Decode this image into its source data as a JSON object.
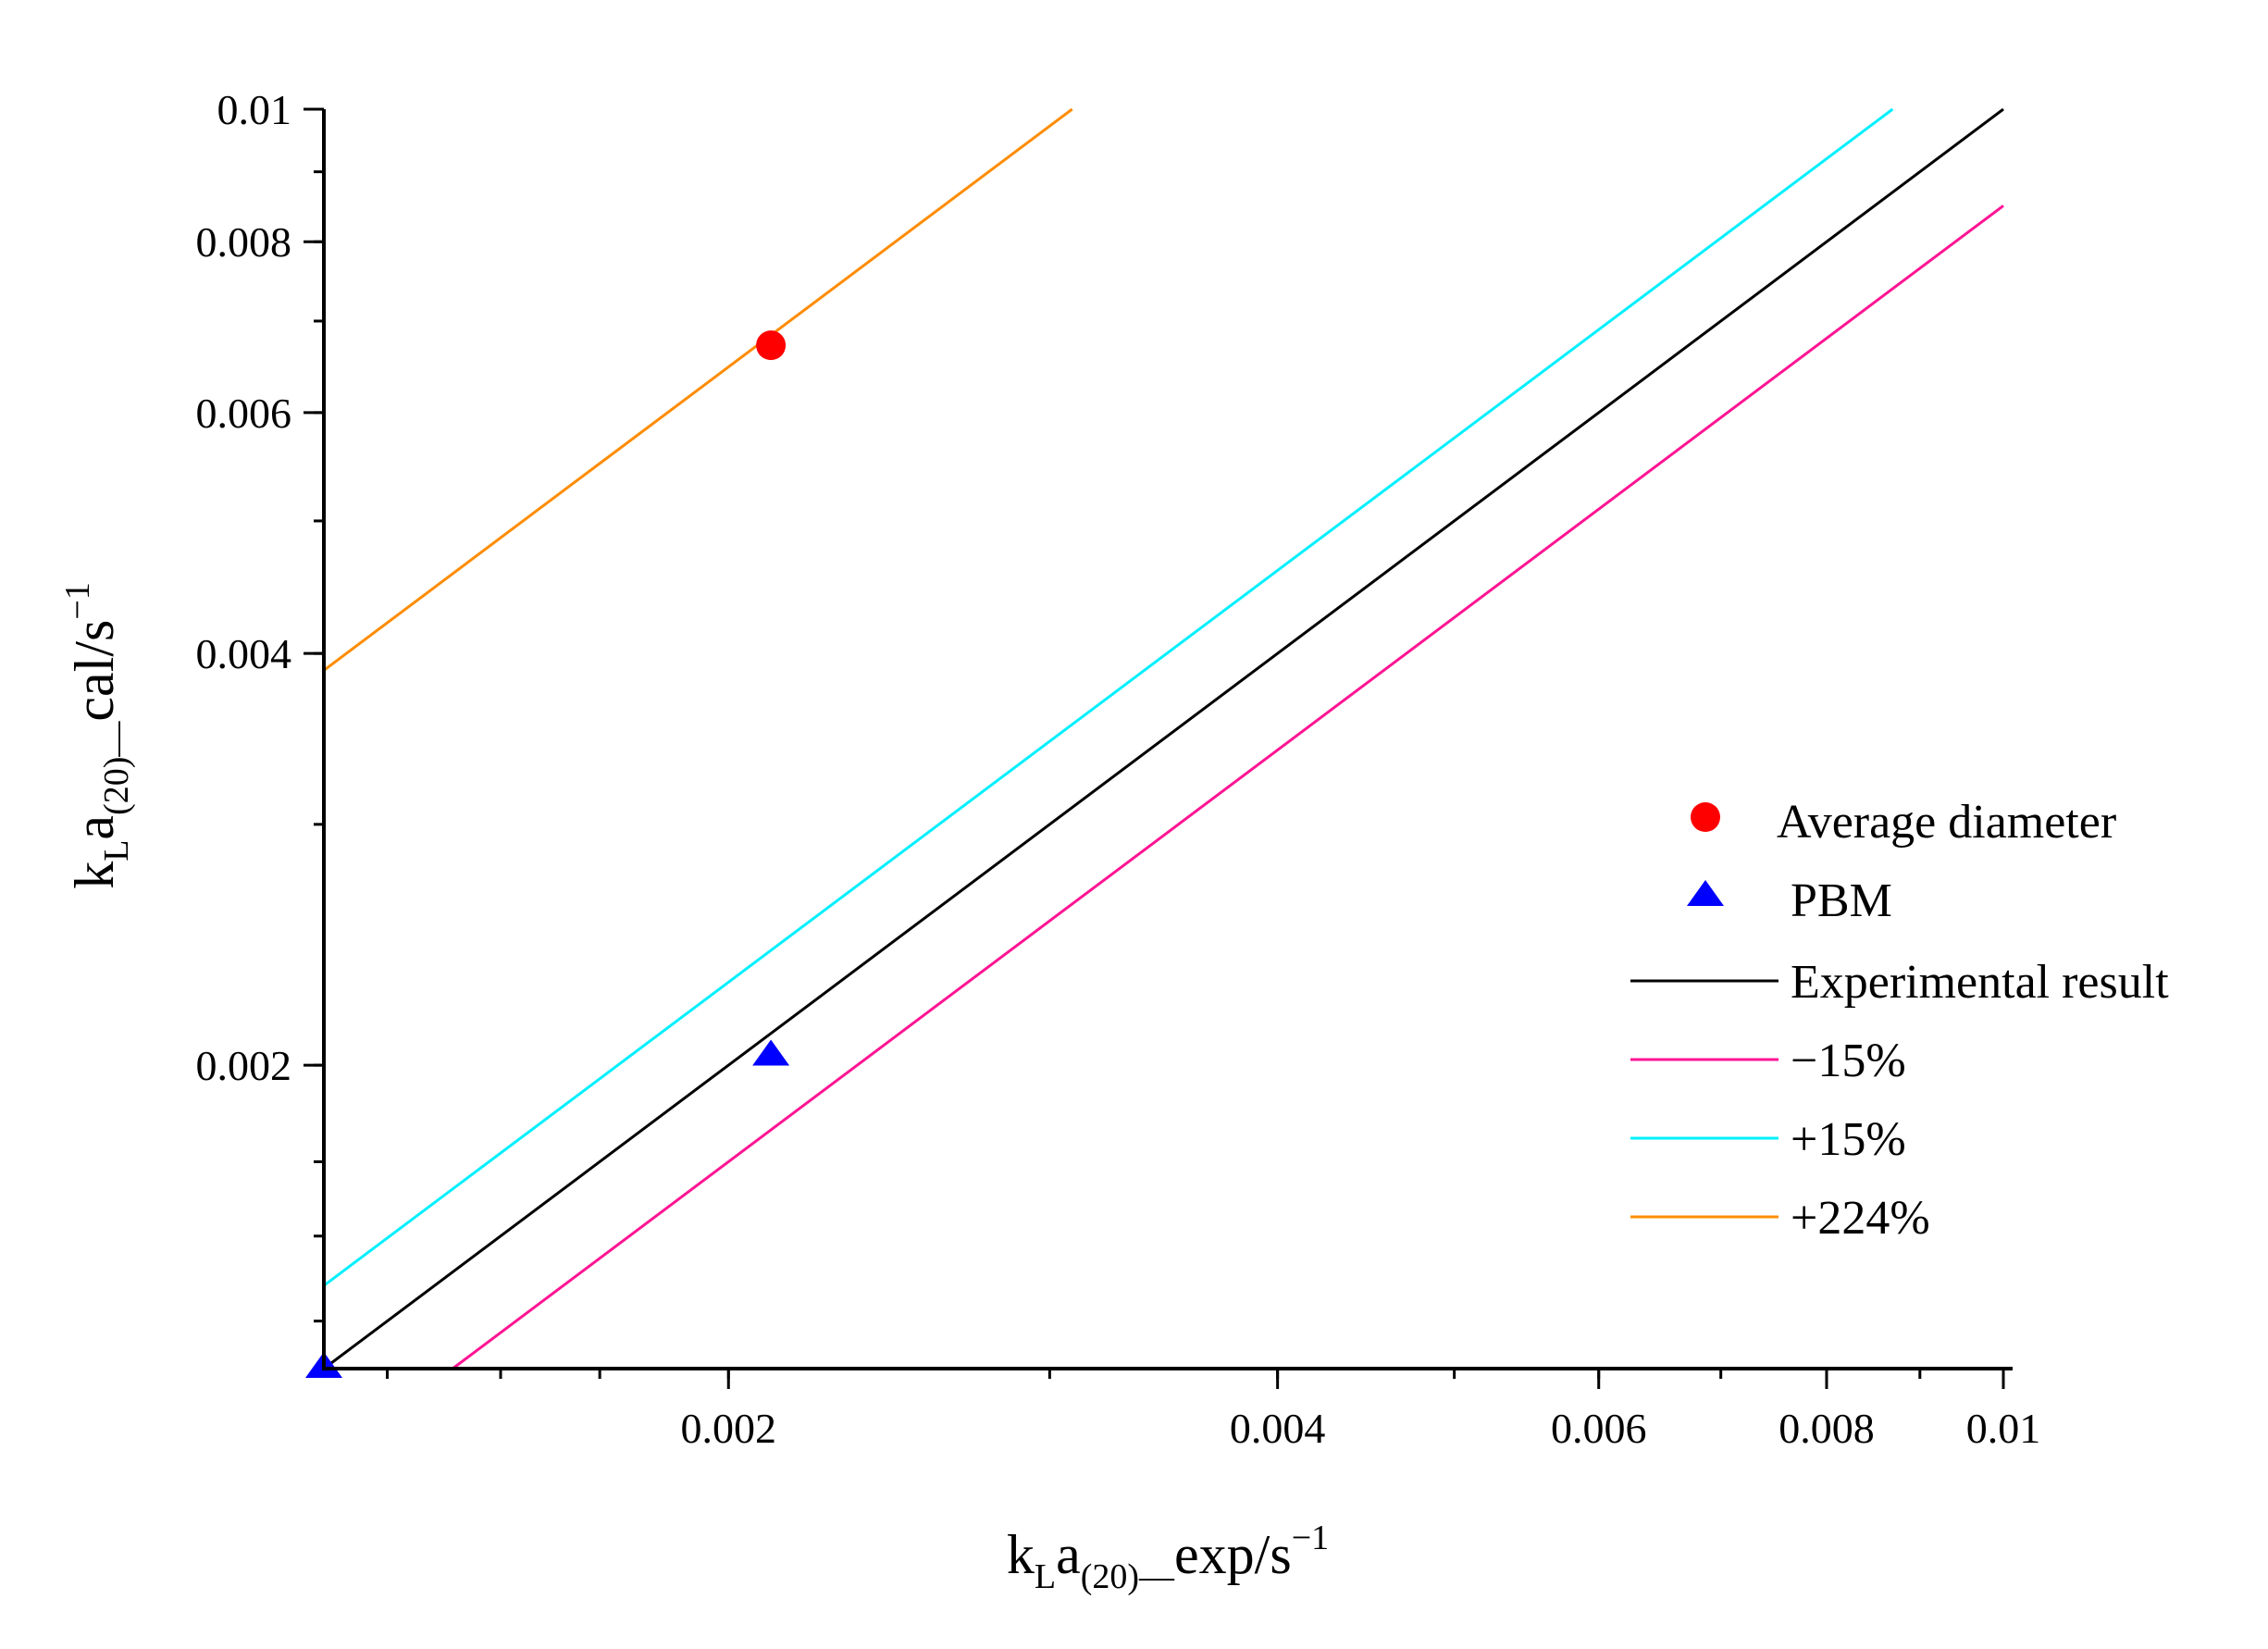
{
  "chart_data": {
    "type": "scatter",
    "title": "",
    "xscale": "log",
    "yscale": "log",
    "xlim": [
      0.0012,
      0.01
    ],
    "ylim": [
      0.0012,
      0.01
    ],
    "xticks": [
      {
        "value": 0.002,
        "label": "0.002"
      },
      {
        "value": 0.004,
        "label": "0.004"
      },
      {
        "value": 0.006,
        "label": "0.006"
      },
      {
        "value": 0.008,
        "label": "0.008"
      },
      {
        "value": 0.01,
        "label": "0.01"
      }
    ],
    "yticks": [
      {
        "value": 0.002,
        "label": "0.002"
      },
      {
        "value": 0.004,
        "label": "0.004"
      },
      {
        "value": 0.006,
        "label": "0.006"
      },
      {
        "value": 0.008,
        "label": "0.008"
      },
      {
        "value": 0.01,
        "label": "0.01"
      }
    ],
    "xlabel": {
      "base": "k",
      "sub1": "L",
      "mid": "a",
      "sub2": "(20)—",
      "tail": "exp/s",
      "sup": "−1"
    },
    "ylabel": {
      "base": "k",
      "sub1": "L",
      "mid": "a",
      "sub2": "(20)—",
      "tail": "cal/s",
      "sup": "−1"
    },
    "series": [
      {
        "name": "Average diameter",
        "kind": "point",
        "marker": "circle",
        "color": "#ff0000",
        "points": [
          [
            0.00211,
            0.00672
          ]
        ]
      },
      {
        "name": "PBM",
        "kind": "point",
        "marker": "triangle",
        "color": "#0000ff",
        "points": [
          [
            0.00211,
            0.00203
          ],
          [
            0.0012,
            0.0012
          ]
        ]
      },
      {
        "name": "Experimental result",
        "kind": "line",
        "factor": 1.0,
        "color": "#000000"
      },
      {
        "name": "−15%",
        "kind": "line",
        "factor": 0.85,
        "color": "#ff1493"
      },
      {
        "name": "+15%",
        "kind": "line",
        "factor": 1.15,
        "color": "#00f0ff"
      },
      {
        "name": "+224%",
        "kind": "line",
        "factor": 3.24,
        "color": "#ff8c00"
      }
    ],
    "legend_position": "right"
  }
}
